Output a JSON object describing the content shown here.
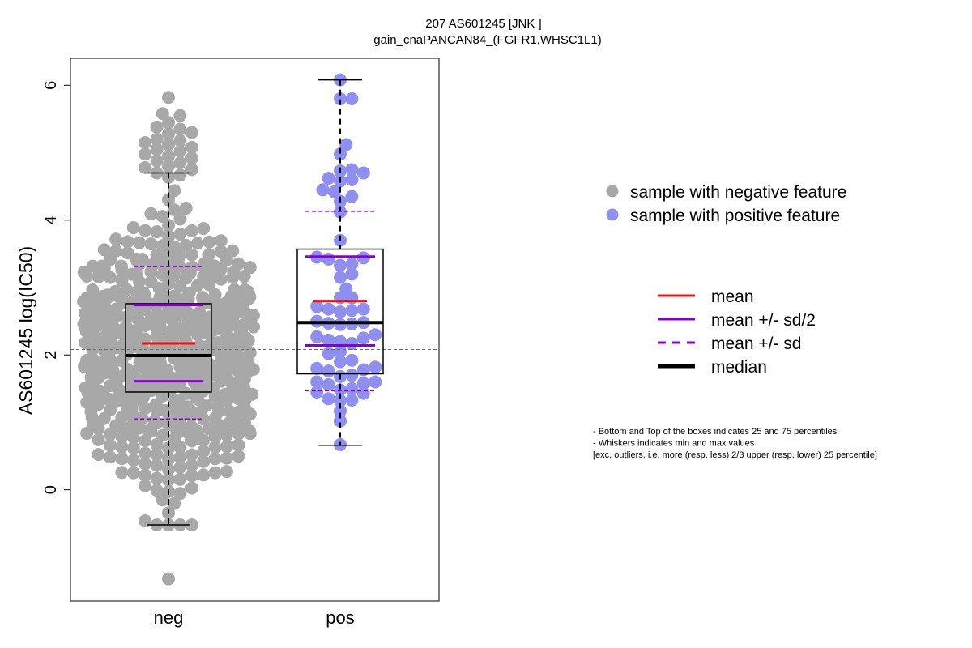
{
  "chart_data": {
    "type": "box",
    "title_line1": "207 AS601245 [JNK ]",
    "title_line2": "gain_cnaPANCAN84_(FGFR1,WHSC1L1)",
    "ylabel": "AS601245 log(IC50)",
    "xlabel": "",
    "categories": [
      "neg",
      "pos"
    ],
    "ylim": [
      -1.65,
      6.4
    ],
    "yticks": [
      0,
      2,
      4,
      6
    ],
    "reference_line_y": 2.08,
    "groups": [
      {
        "name": "neg",
        "color": "#A8A8A8",
        "q1": 1.45,
        "median": 1.99,
        "q3": 2.76,
        "whisker_low": -0.52,
        "whisker_high": 4.7,
        "mean": 2.17,
        "mean_minus_half_sd": 1.61,
        "mean_plus_half_sd": 2.74,
        "mean_minus_sd": 1.05,
        "mean_plus_sd": 3.31,
        "n_points": 620,
        "outliers": [
          5.82,
          5.58,
          5.55,
          5.45,
          5.38,
          5.35,
          5.3,
          5.28,
          5.2,
          5.18,
          5.15,
          5.12,
          5.08,
          5.05,
          5.02,
          4.98,
          4.95,
          4.92,
          4.88,
          4.85,
          4.8,
          4.78,
          4.75,
          -1.32
        ]
      },
      {
        "name": "pos",
        "color": "#8F8FF0",
        "q1": 1.72,
        "median": 2.48,
        "q3": 3.57,
        "whisker_low": 0.66,
        "whisker_high": 6.08,
        "mean": 2.8,
        "mean_minus_half_sd": 2.14,
        "mean_plus_half_sd": 3.46,
        "mean_minus_sd": 1.47,
        "mean_plus_sd": 4.13,
        "points": [
          6.08,
          5.8,
          5.8,
          5.12,
          4.98,
          4.75,
          4.73,
          4.7,
          4.62,
          4.6,
          4.58,
          4.45,
          4.42,
          4.35,
          4.28,
          4.12,
          3.7,
          3.45,
          3.44,
          3.42,
          3.35,
          3.33,
          3.2,
          3.15,
          2.98,
          2.85,
          2.85,
          2.72,
          2.68,
          2.68,
          2.66,
          2.64,
          2.5,
          2.48,
          2.47,
          2.46,
          2.45,
          2.3,
          2.27,
          2.25,
          2.22,
          2.2,
          2.17,
          2.05,
          2.02,
          1.92,
          1.9,
          1.82,
          1.8,
          1.78,
          1.76,
          1.7,
          1.68,
          1.6,
          1.6,
          1.58,
          1.56,
          1.5,
          1.48,
          1.45,
          1.43,
          1.35,
          1.33,
          1.32,
          1.17,
          1.02,
          0.67
        ]
      }
    ],
    "legend_points": [
      {
        "label": "sample with negative feature",
        "color": "#A8A8A8"
      },
      {
        "label": "sample with positive feature",
        "color": "#8F8FF0"
      }
    ],
    "legend_lines": [
      {
        "label": "mean",
        "color": "#EE1111",
        "style": "solid"
      },
      {
        "label": "mean +/- sd/2",
        "color": "#8A00D4",
        "style": "solid"
      },
      {
        "label": "mean +/- sd",
        "color": "#8A00D4",
        "style": "dashed"
      },
      {
        "label": "median",
        "color": "#000000",
        "style": "solid-thick"
      }
    ],
    "notes": [
      "- Bottom and Top of the boxes indicates 25 and 75 percentiles",
      "- Whiskers indicates min and max values",
      "[exc. outliers, i.e. more (resp. less) 2/3 upper (resp. lower) 25 percentile]"
    ]
  }
}
